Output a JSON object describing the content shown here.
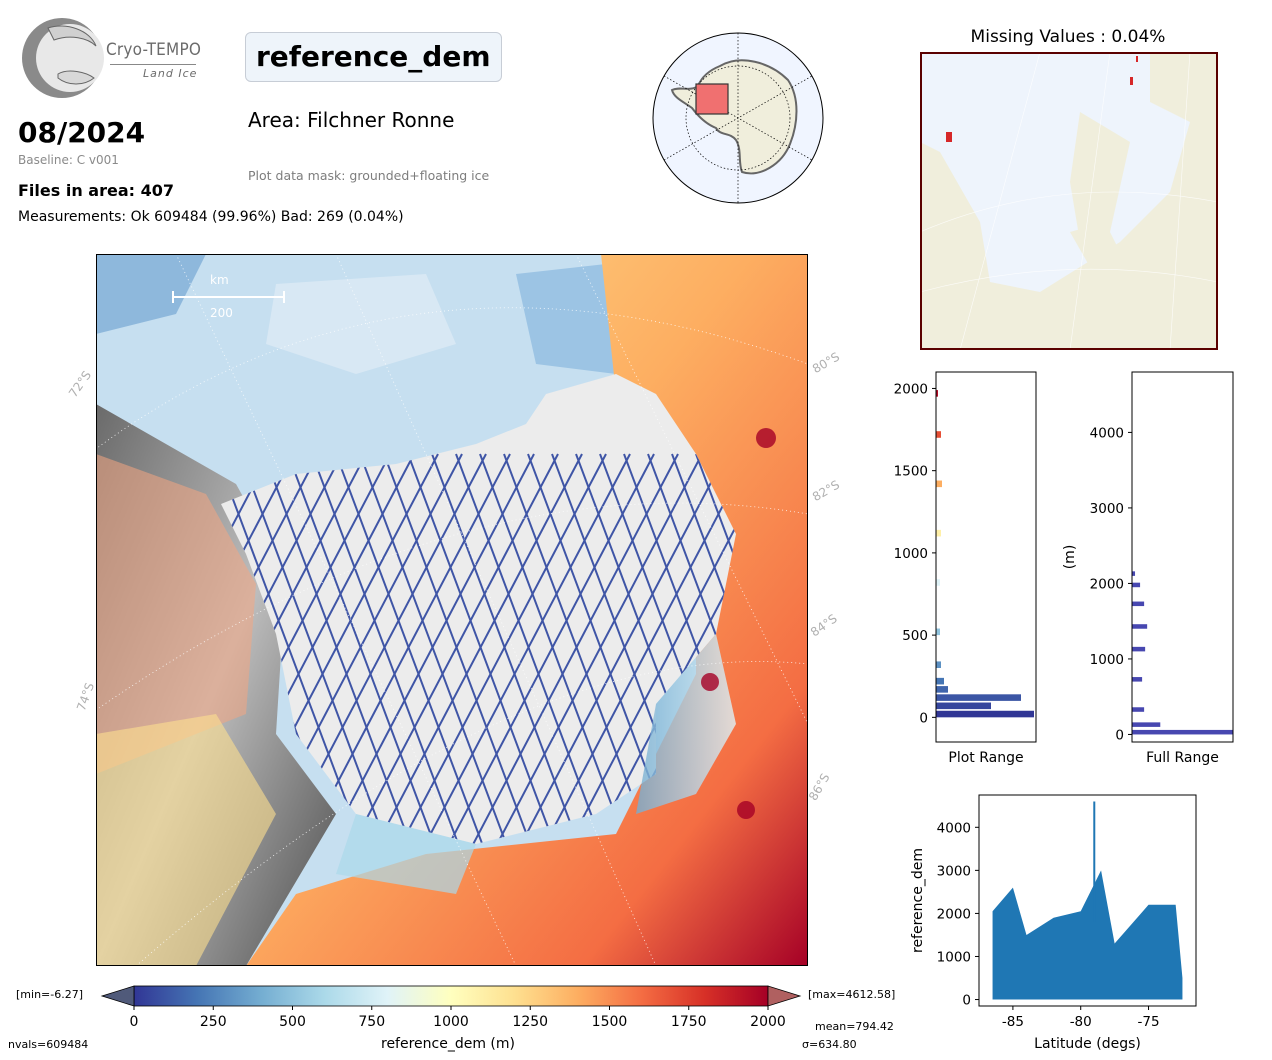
{
  "header": {
    "logo_text": "Cryo-TEMPO",
    "logo_subtext": "Land Ice",
    "date": "08/2024",
    "baseline": "Baseline: C v001",
    "files": "Files in area: 407",
    "measurements": "Measurements: Ok 609484 (99.96%) Bad: 269 (0.04%)",
    "title": "reference_dem",
    "area": "Area: Filchner Ronne",
    "mask": "Plot data mask: grounded+floating ice"
  },
  "colors": {
    "ocean": "#c6dff0",
    "ice": "#ececec",
    "track_blue": "#3f55a6",
    "land": "#f0eedc",
    "missing_bg": "#eef4fc",
    "missing_border": "#5a0000",
    "hist_full": "#4747b0",
    "scatter": "#1f77b4"
  },
  "main_map": {
    "scalebar_unit": "km",
    "scalebar_value": "200",
    "lat_labels": [
      "72°S",
      "74°S",
      "80°S",
      "82°S",
      "84°S",
      "86°S"
    ]
  },
  "missing_panel": {
    "title": "Missing Values : 0.04%"
  },
  "colorbar": {
    "min_label": "[min=-6.27]",
    "max_label": "[max=4612.58]",
    "ticks": [
      "0",
      "250",
      "500",
      "750",
      "1000",
      "1250",
      "1500",
      "1750",
      "2000"
    ],
    "label": "reference_dem (m)",
    "nvals": "nvals=609484",
    "mean": "mean=794.42",
    "sigma": "σ=634.80",
    "stops": [
      "#313695",
      "#4575b4",
      "#74add1",
      "#abd9e9",
      "#e0f3f8",
      "#ffffbf",
      "#fee090",
      "#fdae61",
      "#f46d43",
      "#d73027",
      "#a50026"
    ]
  },
  "chart_data": [
    {
      "type": "bar",
      "orientation": "horizontal",
      "xlabel": "Plot Range",
      "ylabel": "",
      "ylim": [
        -150,
        2100
      ],
      "yticks": [
        "0",
        "500",
        "1000",
        "1500",
        "2000"
      ],
      "bins": [
        {
          "y": 0,
          "v": 0.98
        },
        {
          "y": 50,
          "v": 0.55
        },
        {
          "y": 100,
          "v": 0.85
        },
        {
          "y": 150,
          "v": 0.12
        },
        {
          "y": 200,
          "v": 0.08
        },
        {
          "y": 300,
          "v": 0.05
        },
        {
          "y": 500,
          "v": 0.04
        },
        {
          "y": 800,
          "v": 0.04
        },
        {
          "y": 1100,
          "v": 0.05
        },
        {
          "y": 1400,
          "v": 0.06
        },
        {
          "y": 1700,
          "v": 0.05
        },
        {
          "y": 1950,
          "v": 0.02
        }
      ]
    },
    {
      "type": "bar",
      "orientation": "horizontal",
      "xlabel": "Full Range",
      "ylabel": "(m)",
      "ylim": [
        -100,
        4800
      ],
      "yticks": [
        "0",
        "1000",
        "2000",
        "3000",
        "4000"
      ],
      "bins": [
        {
          "y": 0,
          "v": 1.0
        },
        {
          "y": 100,
          "v": 0.28
        },
        {
          "y": 300,
          "v": 0.12
        },
        {
          "y": 700,
          "v": 0.1
        },
        {
          "y": 1100,
          "v": 0.13
        },
        {
          "y": 1400,
          "v": 0.15
        },
        {
          "y": 1700,
          "v": 0.12
        },
        {
          "y": 1950,
          "v": 0.08
        },
        {
          "y": 2100,
          "v": 0.03
        }
      ]
    },
    {
      "type": "scatter",
      "xlabel": "Latitude (degs)",
      "ylabel": "reference_dem",
      "xlim": [
        -87.5,
        -71.5
      ],
      "ylim": [
        -150,
        4750
      ],
      "xticks": [
        "-85",
        "-80",
        "-75"
      ],
      "yticks": [
        "0",
        "1000",
        "2000",
        "3000",
        "4000"
      ],
      "envelope": [
        {
          "x": -86.5,
          "lo": 0,
          "hi": 2050
        },
        {
          "x": -85.0,
          "lo": 0,
          "hi": 2600
        },
        {
          "x": -84.0,
          "lo": 0,
          "hi": 1500
        },
        {
          "x": -82.0,
          "lo": 0,
          "hi": 1900
        },
        {
          "x": -80.0,
          "lo": 0,
          "hi": 2050
        },
        {
          "x": -78.5,
          "lo": 0,
          "hi": 3000
        },
        {
          "x": -77.5,
          "lo": 0,
          "hi": 1300
        },
        {
          "x": -75.0,
          "lo": 0,
          "hi": 2200
        },
        {
          "x": -73.0,
          "lo": 0,
          "hi": 2200
        },
        {
          "x": -72.5,
          "lo": 0,
          "hi": 500
        }
      ],
      "peak": {
        "x": -79.0,
        "y": 4600
      }
    }
  ]
}
